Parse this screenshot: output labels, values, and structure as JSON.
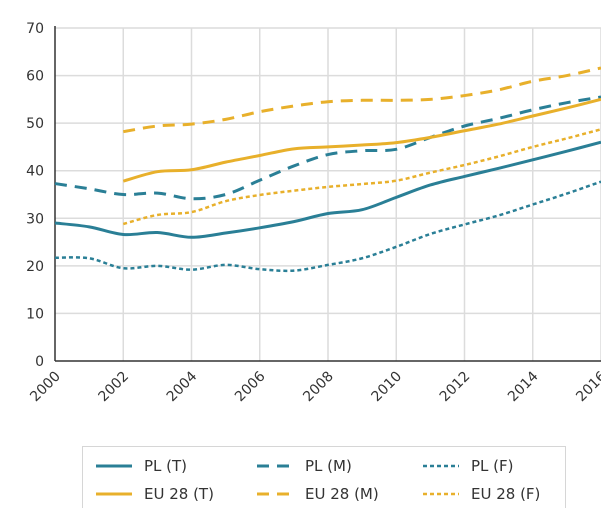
{
  "chart_data": {
    "type": "line",
    "title": "",
    "xlabel": "",
    "ylabel": "",
    "xlim": [
      2000,
      2016
    ],
    "ylim": [
      0,
      70
    ],
    "yticks": [
      0,
      10,
      20,
      30,
      40,
      50,
      60,
      70
    ],
    "xticks": [
      "2000",
      "2002",
      "2004",
      "2006",
      "2008",
      "2010",
      "2012",
      "2014",
      "2016"
    ],
    "grid": true,
    "legend_position": "bottom",
    "series": [
      {
        "name": "PL (T)",
        "color": "#2a7f96",
        "style": "solid",
        "x": [
          2000,
          2001,
          2002,
          2003,
          2004,
          2005,
          2006,
          2007,
          2008,
          2009,
          2010,
          2011,
          2012,
          2013,
          2014,
          2015,
          2016
        ],
        "values": [
          29.0,
          28.2,
          26.6,
          27.0,
          26.0,
          26.9,
          28.0,
          29.3,
          31.0,
          31.8,
          34.4,
          37.0,
          38.8,
          40.5,
          42.3,
          44.1,
          46.0
        ]
      },
      {
        "name": "PL (M)",
        "color": "#2a7f96",
        "style": "dashed",
        "x": [
          2000,
          2001,
          2002,
          2003,
          2004,
          2005,
          2006,
          2007,
          2008,
          2009,
          2010,
          2011,
          2012,
          2013,
          2014,
          2015,
          2016
        ],
        "values": [
          37.3,
          36.2,
          35.0,
          35.3,
          34.1,
          35.0,
          38.0,
          41.0,
          43.4,
          44.2,
          44.5,
          47.0,
          49.4,
          51.0,
          52.8,
          54.3,
          55.5
        ]
      },
      {
        "name": "PL (F)",
        "color": "#2a7f96",
        "style": "dotted",
        "x": [
          2000,
          2001,
          2002,
          2003,
          2004,
          2005,
          2006,
          2007,
          2008,
          2009,
          2010,
          2011,
          2012,
          2013,
          2014,
          2015,
          2016
        ],
        "values": [
          21.7,
          21.6,
          19.5,
          20.0,
          19.2,
          20.2,
          19.3,
          19.0,
          20.2,
          21.6,
          24.0,
          26.7,
          28.7,
          30.6,
          32.9,
          35.2,
          37.7
        ]
      },
      {
        "name": "EU 28 (T)",
        "color": "#e8b02b",
        "style": "solid",
        "x": [
          2002,
          2003,
          2004,
          2005,
          2006,
          2007,
          2008,
          2009,
          2010,
          2011,
          2012,
          2013,
          2014,
          2015,
          2016
        ],
        "values": [
          37.8,
          39.8,
          40.2,
          41.8,
          43.2,
          44.6,
          45.0,
          45.4,
          45.9,
          47.0,
          48.4,
          49.8,
          51.5,
          53.2,
          55.0
        ]
      },
      {
        "name": "EU 28 (M)",
        "color": "#e8b02b",
        "style": "dashed",
        "x": [
          2002,
          2003,
          2004,
          2005,
          2006,
          2007,
          2008,
          2009,
          2010,
          2011,
          2012,
          2013,
          2014,
          2015,
          2016
        ],
        "values": [
          48.2,
          49.4,
          49.8,
          50.8,
          52.4,
          53.6,
          54.5,
          54.8,
          54.8,
          55.0,
          55.8,
          57.0,
          58.8,
          60.0,
          61.6
        ]
      },
      {
        "name": "EU 28 (F)",
        "color": "#e8b02b",
        "style": "dotted",
        "x": [
          2002,
          2003,
          2004,
          2005,
          2006,
          2007,
          2008,
          2009,
          2010,
          2011,
          2012,
          2013,
          2014,
          2015,
          2016
        ],
        "values": [
          28.8,
          30.7,
          31.3,
          33.6,
          34.9,
          35.8,
          36.6,
          37.2,
          37.9,
          39.6,
          41.2,
          43.0,
          45.0,
          46.8,
          48.7
        ]
      }
    ]
  },
  "legend": {
    "items": [
      {
        "label": "PL (T)",
        "color": "#2a7f96",
        "style": "solid"
      },
      {
        "label": "PL (M)",
        "color": "#2a7f96",
        "style": "dashed"
      },
      {
        "label": "PL (F)",
        "color": "#2a7f96",
        "style": "dotted"
      },
      {
        "label": "EU 28 (T)",
        "color": "#e8b02b",
        "style": "solid"
      },
      {
        "label": "EU 28 (M)",
        "color": "#e8b02b",
        "style": "dashed"
      },
      {
        "label": "EU 28 (F)",
        "color": "#e8b02b",
        "style": "dotted"
      }
    ]
  }
}
